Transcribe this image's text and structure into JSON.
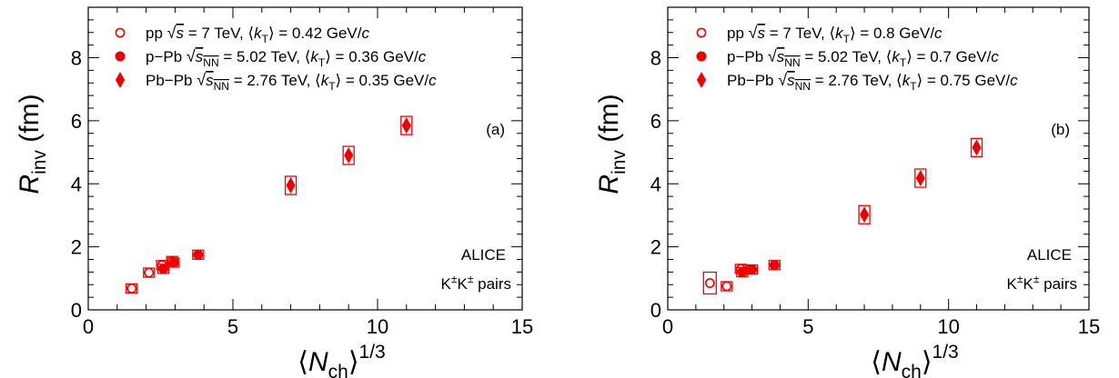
{
  "chart_data": [
    {
      "type": "scatter",
      "panel_label": "(a)",
      "xlim": [
        0,
        15
      ],
      "ylim": [
        0,
        9.6
      ],
      "x_ticks": [
        0,
        5,
        10,
        15
      ],
      "y_ticks": [
        0,
        2,
        4,
        6,
        8
      ],
      "x_tick_labels": [
        "0",
        "5",
        "10",
        "15"
      ],
      "y_tick_labels": [
        "0",
        "2",
        "4",
        "6",
        "8"
      ],
      "xlabel": {
        "main": "⟨N",
        "sub": "ch",
        "close": "⟩",
        "sup": "1/3"
      },
      "ylabel": {
        "main": "R",
        "sub": "inv",
        "tail": " (fm)"
      },
      "annotations": [
        "ALICE",
        "K±K± pairs"
      ],
      "grid": false,
      "legend_position": "top-left",
      "color": "#ee0000",
      "series": [
        {
          "marker": "open-circle",
          "legend": {
            "sys": "pp",
            "energy": "s",
            "energy_sub": "",
            "energy_value": " = 7 TeV, ⟨k",
            "kt_sub": "T",
            "kt_value": "⟩ = 0.42 GeV/",
            "unit_c": "c"
          },
          "points": [
            {
              "x": 1.5,
              "y": 0.68
            },
            {
              "x": 2.1,
              "y": 1.18
            },
            {
              "x": 2.55,
              "y": 1.42
            },
            {
              "x": 2.9,
              "y": 1.55
            }
          ]
        },
        {
          "marker": "filled-circle",
          "legend": {
            "sys": "p−Pb",
            "energy": "s",
            "energy_sub": "NN",
            "energy_value": " = 5.02 TeV, ⟨k",
            "kt_sub": "T",
            "kt_value": "⟩ = 0.36 GeV/",
            "unit_c": "c"
          },
          "points": [
            {
              "x": 2.6,
              "y": 1.3
            },
            {
              "x": 2.95,
              "y": 1.5
            },
            {
              "x": 3.8,
              "y": 1.75
            }
          ]
        },
        {
          "marker": "filled-diamond",
          "legend": {
            "sys": "Pb−Pb",
            "energy": "s",
            "energy_sub": "NN",
            "energy_value": " = 2.76 TeV, ⟨k",
            "kt_sub": "T",
            "kt_value": "⟩ = 0.35 GeV/",
            "unit_c": "c"
          },
          "points": [
            {
              "x": 7.0,
              "y": 3.95
            },
            {
              "x": 9.0,
              "y": 4.9
            },
            {
              "x": 11.0,
              "y": 5.85
            }
          ]
        }
      ]
    },
    {
      "type": "scatter",
      "panel_label": "(b)",
      "xlim": [
        0,
        15
      ],
      "ylim": [
        0,
        9.6
      ],
      "x_ticks": [
        0,
        5,
        10,
        15
      ],
      "y_ticks": [
        0,
        2,
        4,
        6,
        8
      ],
      "x_tick_labels": [
        "0",
        "5",
        "10",
        "15"
      ],
      "y_tick_labels": [
        "0",
        "2",
        "4",
        "6",
        "8"
      ],
      "xlabel": {
        "main": "⟨N",
        "sub": "ch",
        "close": "⟩",
        "sup": "1/3"
      },
      "ylabel": {
        "main": "R",
        "sub": "inv",
        "tail": " (fm)"
      },
      "annotations": [
        "ALICE",
        "K±K± pairs"
      ],
      "grid": false,
      "legend_position": "top-left",
      "color": "#ee0000",
      "series": [
        {
          "marker": "open-circle",
          "legend": {
            "sys": "pp",
            "energy": "s",
            "energy_sub": "",
            "energy_value": " = 7 TeV, ⟨k",
            "kt_sub": "T",
            "kt_value": "⟩ = 0.8 GeV/",
            "unit_c": "c"
          },
          "points": [
            {
              "x": 1.5,
              "y": 0.85
            },
            {
              "x": 2.1,
              "y": 0.75
            },
            {
              "x": 2.6,
              "y": 1.3
            },
            {
              "x": 2.9,
              "y": 1.28
            }
          ]
        },
        {
          "marker": "filled-circle",
          "legend": {
            "sys": "p−Pb",
            "energy": "s",
            "energy_sub": "NN",
            "energy_value": " = 5.02 TeV, ⟨k",
            "kt_sub": "T",
            "kt_value": "⟩ = 0.7 GeV/",
            "unit_c": "c"
          },
          "points": [
            {
              "x": 2.65,
              "y": 1.2
            },
            {
              "x": 3.0,
              "y": 1.28
            },
            {
              "x": 3.8,
              "y": 1.42
            }
          ]
        },
        {
          "marker": "filled-diamond",
          "legend": {
            "sys": "Pb−Pb",
            "energy": "s",
            "energy_sub": "NN",
            "energy_value": " = 2.76 TeV, ⟨k",
            "kt_sub": "T",
            "kt_value": "⟩ = 0.75 GeV/",
            "unit_c": "c"
          },
          "points": [
            {
              "x": 7.0,
              "y": 3.02
            },
            {
              "x": 9.0,
              "y": 4.18
            },
            {
              "x": 11.0,
              "y": 5.15
            }
          ]
        }
      ]
    }
  ]
}
